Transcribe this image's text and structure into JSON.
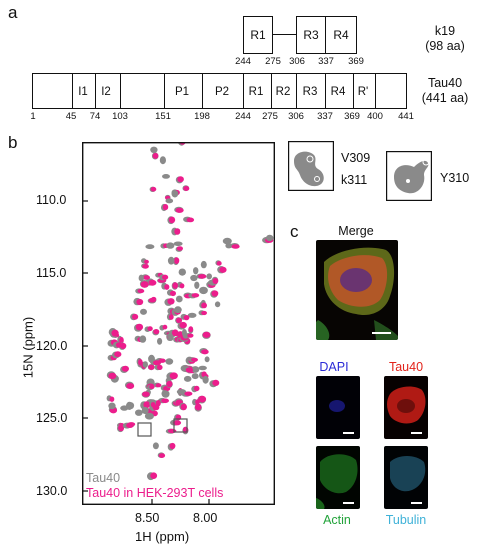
{
  "panels": {
    "a": "a",
    "b": "b",
    "c": "c"
  },
  "k19": {
    "name": "k19",
    "length": "(98 aa)",
    "domains": [
      "R1",
      "R3",
      "R4"
    ],
    "numbers": [
      "244",
      "275",
      "306",
      "337",
      "369"
    ]
  },
  "tau40": {
    "name": "Tau40",
    "length": "(441 aa)",
    "domains": [
      "I1",
      "I2",
      "P1",
      "P2",
      "R1",
      "R2",
      "R3",
      "R4",
      "R'"
    ],
    "numbers": [
      "1",
      "45",
      "74",
      "103",
      "151",
      "198",
      "244",
      "275",
      "306",
      "337",
      "369",
      "400",
      "441"
    ]
  },
  "nmr": {
    "xlabel": "1H (ppm)",
    "ylabel": "15N (ppm)",
    "xticks": [
      "8.50",
      "8.00"
    ],
    "yticks": [
      "110.0",
      "115.0",
      "120.0",
      "125.0",
      "130.0"
    ],
    "legend": [
      "Tau40",
      "Tau40 in HEK-293T cells"
    ],
    "colors": {
      "reference": "#8a8a8a",
      "incell": "#ec1d8c"
    },
    "insets": {
      "left_labels": [
        "V309",
        "k311"
      ],
      "right_label": "Y310"
    }
  },
  "chart_data": {
    "type": "scatter",
    "xlabel": "1H (ppm)",
    "ylabel": "15N (ppm)",
    "xlim": [
      8.85,
      7.65
    ],
    "ylim": [
      131,
      106
    ],
    "x_axis_reversed": true,
    "y_axis_reversed": true,
    "series": [
      {
        "name": "Tau40",
        "color": "#8a8a8a"
      },
      {
        "name": "Tau40 in HEK-293T cells",
        "color": "#ec1d8c"
      }
    ]
  },
  "microscopy": {
    "merge": "Merge",
    "dapi": "DAPI",
    "tau40": "Tau40",
    "actin": "Actin",
    "tubulin": "Tubulin",
    "label_colors": {
      "dapi": "#2b2bd6",
      "tau40": "#e2231a",
      "actin": "#22a33a",
      "tubulin": "#3fb2d8"
    }
  }
}
